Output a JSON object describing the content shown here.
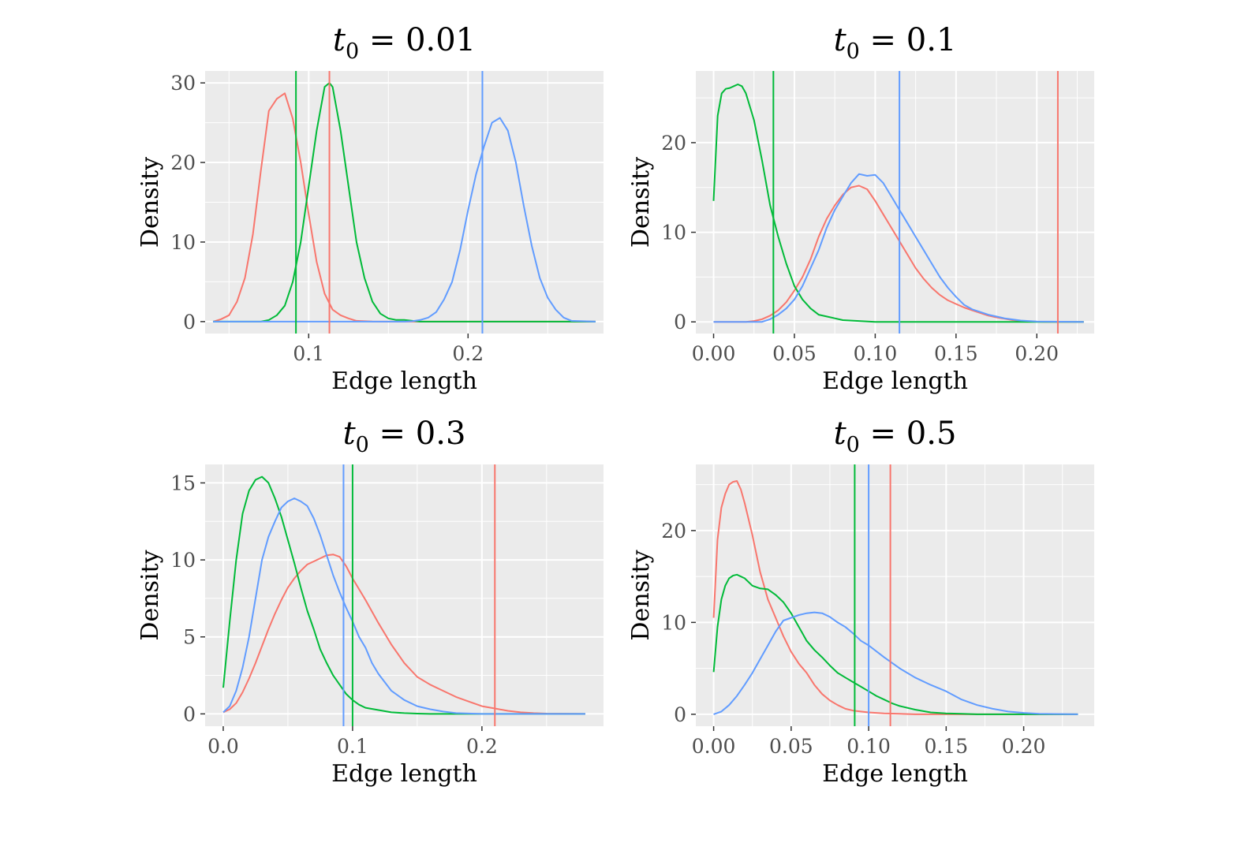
{
  "series_colors": [
    "#f8766d",
    "#00ba38",
    "#619cff"
  ],
  "chart_data": [
    {
      "type": "line",
      "title": {
        "var": "t",
        "sub": "0",
        "rest": " = 0.01"
      },
      "xlabel": "Edge length",
      "ylabel": "Density",
      "xlim": [
        0.035,
        0.285
      ],
      "ylim": [
        -1.5,
        31.5
      ],
      "xticks": [
        {
          "v": 0.1,
          "label": "0.1"
        },
        {
          "v": 0.2,
          "label": "0.2"
        }
      ],
      "xminor": [
        0.05,
        0.15,
        0.25
      ],
      "yticks": [
        {
          "v": 0,
          "label": "0"
        },
        {
          "v": 10,
          "label": "10"
        },
        {
          "v": 20,
          "label": "20"
        },
        {
          "v": 30,
          "label": "30"
        }
      ],
      "yminor": [
        5,
        15,
        25
      ],
      "vlines": [
        0.113,
        0.092,
        0.209
      ],
      "series": [
        {
          "x": [
            0.04,
            0.045,
            0.05,
            0.055,
            0.06,
            0.065,
            0.07,
            0.075,
            0.08,
            0.085,
            0.09,
            0.095,
            0.1,
            0.105,
            0.11,
            0.115,
            0.12,
            0.125,
            0.13,
            0.14,
            0.15,
            0.28
          ],
          "y": [
            0,
            0.3,
            0.8,
            2.5,
            5.5,
            11,
            19,
            26.5,
            28,
            28.7,
            25.5,
            20,
            13.5,
            7.5,
            3.5,
            1.5,
            0.8,
            0.4,
            0.1,
            0.02,
            0,
            0
          ]
        },
        {
          "x": [
            0.04,
            0.07,
            0.075,
            0.08,
            0.085,
            0.09,
            0.095,
            0.1,
            0.105,
            0.11,
            0.113,
            0.115,
            0.12,
            0.125,
            0.13,
            0.135,
            0.14,
            0.145,
            0.15,
            0.155,
            0.16,
            0.165,
            0.17,
            0.28
          ],
          "y": [
            0,
            0,
            0.2,
            0.8,
            2,
            5,
            10,
            17,
            24,
            29.5,
            30,
            29.5,
            24,
            17,
            10,
            5.5,
            2.5,
            1,
            0.4,
            0.2,
            0.2,
            0.1,
            0,
            0
          ]
        },
        {
          "x": [
            0.04,
            0.16,
            0.165,
            0.17,
            0.175,
            0.18,
            0.185,
            0.19,
            0.195,
            0.2,
            0.205,
            0.21,
            0.215,
            0.22,
            0.225,
            0.23,
            0.235,
            0.24,
            0.245,
            0.25,
            0.255,
            0.26,
            0.265,
            0.28
          ],
          "y": [
            0,
            0,
            0.05,
            0.2,
            0.5,
            1.2,
            2.8,
            5,
            9,
            14,
            18.5,
            22,
            25,
            25.6,
            24,
            20,
            14.5,
            9.5,
            5.5,
            3,
            1.5,
            0.5,
            0.1,
            0
          ]
        }
      ]
    },
    {
      "type": "line",
      "title": {
        "var": "t",
        "sub": "0",
        "rest": " = 0.1"
      },
      "xlabel": "Edge length",
      "ylabel": "Density",
      "xlim": [
        -0.011,
        0.2355
      ],
      "ylim": [
        -1.3,
        28
      ],
      "xticks": [
        {
          "v": 0,
          "label": "0.00"
        },
        {
          "v": 0.05,
          "label": "0.05"
        },
        {
          "v": 0.1,
          "label": "0.10"
        },
        {
          "v": 0.15,
          "label": "0.15"
        },
        {
          "v": 0.2,
          "label": "0.20"
        }
      ],
      "xminor": [
        0.025,
        0.075,
        0.125,
        0.175,
        0.225
      ],
      "yticks": [
        {
          "v": 0,
          "label": "0"
        },
        {
          "v": 10,
          "label": "10"
        },
        {
          "v": 20,
          "label": "20"
        }
      ],
      "yminor": [
        5,
        15,
        25
      ],
      "vlines": [
        0.213,
        0.037,
        0.115
      ],
      "series": [
        {
          "x": [
            0,
            0.02,
            0.025,
            0.03,
            0.035,
            0.04,
            0.045,
            0.05,
            0.055,
            0.06,
            0.065,
            0.07,
            0.075,
            0.08,
            0.085,
            0.09,
            0.095,
            0.1,
            0.105,
            0.11,
            0.115,
            0.12,
            0.125,
            0.13,
            0.135,
            0.14,
            0.145,
            0.15,
            0.155,
            0.16,
            0.165,
            0.17,
            0.175,
            0.18,
            0.185,
            0.19,
            0.195,
            0.2,
            0.205,
            0.21,
            0.229
          ],
          "y": [
            0,
            0,
            0.1,
            0.3,
            0.7,
            1.3,
            2.2,
            3.5,
            5,
            7,
            9.5,
            11.5,
            13,
            14.2,
            15,
            15.2,
            14.8,
            13.5,
            12,
            10.5,
            9,
            7.5,
            6,
            4.8,
            3.8,
            3,
            2.4,
            2,
            1.6,
            1.3,
            1,
            0.7,
            0.5,
            0.35,
            0.2,
            0.1,
            0.05,
            0.02,
            0,
            0,
            0
          ]
        },
        {
          "x": [
            0,
            0.0025,
            0.005,
            0.0075,
            0.01,
            0.0125,
            0.015,
            0.0175,
            0.02,
            0.025,
            0.03,
            0.035,
            0.04,
            0.045,
            0.05,
            0.055,
            0.06,
            0.065,
            0.07,
            0.075,
            0.08,
            0.09,
            0.1,
            0.229
          ],
          "y": [
            13.5,
            23,
            25.5,
            26,
            26.1,
            26.3,
            26.5,
            26.3,
            25.5,
            22.5,
            18,
            13,
            9.5,
            6.5,
            4,
            2.5,
            1.5,
            0.8,
            0.6,
            0.4,
            0.2,
            0.1,
            0,
            0
          ]
        },
        {
          "x": [
            0,
            0.03,
            0.035,
            0.04,
            0.045,
            0.05,
            0.055,
            0.06,
            0.065,
            0.07,
            0.075,
            0.08,
            0.085,
            0.09,
            0.095,
            0.1,
            0.105,
            0.11,
            0.115,
            0.12,
            0.125,
            0.13,
            0.135,
            0.14,
            0.145,
            0.15,
            0.155,
            0.16,
            0.17,
            0.18,
            0.19,
            0.2,
            0.229
          ],
          "y": [
            0,
            0,
            0.3,
            0.8,
            1.5,
            2.5,
            4,
            6,
            8,
            10.5,
            12.5,
            14,
            15.5,
            16.5,
            16.3,
            16.4,
            15.5,
            14,
            12.5,
            11,
            9.5,
            8,
            6.5,
            5,
            3.8,
            2.8,
            1.9,
            1.4,
            0.8,
            0.4,
            0.15,
            0.05,
            0
          ]
        }
      ]
    },
    {
      "type": "line",
      "title": {
        "var": "t",
        "sub": "0",
        "rest": " = 0.3"
      },
      "xlabel": "Edge length",
      "ylabel": "Density",
      "xlim": [
        -0.014,
        0.294
      ],
      "ylim": [
        -0.8,
        16.2
      ],
      "xticks": [
        {
          "v": 0,
          "label": "0.0"
        },
        {
          "v": 0.1,
          "label": "0.1"
        },
        {
          "v": 0.2,
          "label": "0.2"
        }
      ],
      "xminor": [
        0.05,
        0.15,
        0.25
      ],
      "yticks": [
        {
          "v": 0,
          "label": "0"
        },
        {
          "v": 5,
          "label": "5"
        },
        {
          "v": 10,
          "label": "10"
        },
        {
          "v": 15,
          "label": "15"
        }
      ],
      "yminor": [
        2.5,
        7.5,
        12.5
      ],
      "vlines": [
        0.21,
        0.1,
        0.093
      ],
      "series": [
        {
          "x": [
            0,
            0.005,
            0.01,
            0.015,
            0.02,
            0.025,
            0.03,
            0.035,
            0.04,
            0.045,
            0.05,
            0.055,
            0.06,
            0.065,
            0.07,
            0.075,
            0.08,
            0.085,
            0.09,
            0.095,
            0.1,
            0.11,
            0.12,
            0.13,
            0.14,
            0.15,
            0.16,
            0.17,
            0.18,
            0.19,
            0.2,
            0.21,
            0.22,
            0.23,
            0.24,
            0.25,
            0.28
          ],
          "y": [
            0.1,
            0.3,
            0.7,
            1.4,
            2.3,
            3.3,
            4.4,
            5.5,
            6.5,
            7.4,
            8.2,
            8.8,
            9.3,
            9.7,
            9.9,
            10.1,
            10.3,
            10.35,
            10.2,
            9.6,
            8.8,
            7.4,
            5.9,
            4.5,
            3.3,
            2.4,
            1.9,
            1.5,
            1.1,
            0.8,
            0.5,
            0.35,
            0.2,
            0.1,
            0.05,
            0.02,
            0
          ]
        },
        {
          "x": [
            0,
            0.005,
            0.01,
            0.015,
            0.02,
            0.025,
            0.03,
            0.035,
            0.04,
            0.045,
            0.05,
            0.055,
            0.06,
            0.065,
            0.07,
            0.075,
            0.08,
            0.085,
            0.09,
            0.095,
            0.1,
            0.105,
            0.11,
            0.12,
            0.13,
            0.14,
            0.15,
            0.16,
            0.17,
            0.28
          ],
          "y": [
            1.7,
            6,
            10,
            13,
            14.5,
            15.2,
            15.4,
            15,
            14,
            12.8,
            11.3,
            9.8,
            8.2,
            6.7,
            5.5,
            4.2,
            3.3,
            2.5,
            1.9,
            1.3,
            0.9,
            0.6,
            0.4,
            0.25,
            0.1,
            0.05,
            0.02,
            0,
            0,
            0
          ]
        },
        {
          "x": [
            0,
            0.005,
            0.01,
            0.015,
            0.02,
            0.025,
            0.03,
            0.035,
            0.04,
            0.045,
            0.05,
            0.055,
            0.06,
            0.065,
            0.07,
            0.075,
            0.08,
            0.085,
            0.09,
            0.095,
            0.1,
            0.105,
            0.11,
            0.115,
            0.12,
            0.13,
            0.14,
            0.15,
            0.16,
            0.17,
            0.18,
            0.2,
            0.28
          ],
          "y": [
            0.1,
            0.5,
            1.5,
            3,
            5,
            7.5,
            10,
            11.5,
            12.5,
            13.4,
            13.8,
            14,
            13.8,
            13.5,
            12.7,
            11.6,
            10.3,
            9,
            7.9,
            6.9,
            6,
            5,
            4.3,
            3.3,
            2.6,
            1.5,
            0.9,
            0.5,
            0.3,
            0.15,
            0.05,
            0,
            0
          ]
        }
      ]
    },
    {
      "type": "line",
      "title": {
        "var": "t",
        "sub": "0",
        "rest": " = 0.5"
      },
      "xlabel": "Edge length",
      "ylabel": "Density",
      "xlim": [
        -0.0115,
        0.2455
      ],
      "ylim": [
        -1.3,
        27.2
      ],
      "xticks": [
        {
          "v": 0,
          "label": "0.00"
        },
        {
          "v": 0.05,
          "label": "0.05"
        },
        {
          "v": 0.1,
          "label": "0.10"
        },
        {
          "v": 0.15,
          "label": "0.15"
        },
        {
          "v": 0.2,
          "label": "0.20"
        }
      ],
      "xminor": [
        0.025,
        0.075,
        0.125,
        0.175,
        0.225
      ],
      "yticks": [
        {
          "v": 0,
          "label": "0"
        },
        {
          "v": 10,
          "label": "10"
        },
        {
          "v": 20,
          "label": "20"
        }
      ],
      "yminor": [
        5,
        15,
        25
      ],
      "vlines": [
        0.114,
        0.091,
        0.1
      ],
      "series": [
        {
          "x": [
            0,
            0.0025,
            0.005,
            0.0075,
            0.01,
            0.0125,
            0.015,
            0.0175,
            0.02,
            0.025,
            0.03,
            0.035,
            0.04,
            0.045,
            0.05,
            0.055,
            0.06,
            0.065,
            0.07,
            0.075,
            0.08,
            0.085,
            0.09,
            0.1,
            0.11,
            0.12,
            0.13,
            0.235
          ],
          "y": [
            10.5,
            19,
            22.5,
            24,
            25,
            25.3,
            25.4,
            24.5,
            23,
            19.5,
            15.5,
            12.5,
            10.5,
            8.5,
            6.8,
            5.5,
            4.5,
            3.2,
            2.2,
            1.5,
            1,
            0.6,
            0.4,
            0.2,
            0.1,
            0.05,
            0,
            0
          ]
        },
        {
          "x": [
            0,
            0.0025,
            0.005,
            0.0075,
            0.01,
            0.0125,
            0.015,
            0.02,
            0.025,
            0.03,
            0.035,
            0.04,
            0.045,
            0.05,
            0.055,
            0.06,
            0.065,
            0.07,
            0.075,
            0.08,
            0.085,
            0.09,
            0.095,
            0.1,
            0.105,
            0.11,
            0.115,
            0.12,
            0.13,
            0.14,
            0.15,
            0.16,
            0.17,
            0.235
          ],
          "y": [
            4.6,
            9.5,
            12.5,
            14,
            14.8,
            15.1,
            15.2,
            14.8,
            14,
            13.7,
            13.6,
            13,
            12.2,
            11,
            9.5,
            8,
            7,
            6.2,
            5.3,
            4.5,
            4,
            3.5,
            3,
            2.5,
            2,
            1.6,
            1.2,
            0.9,
            0.5,
            0.2,
            0.1,
            0.05,
            0,
            0
          ]
        },
        {
          "x": [
            0,
            0.005,
            0.01,
            0.015,
            0.02,
            0.025,
            0.03,
            0.035,
            0.04,
            0.045,
            0.05,
            0.055,
            0.06,
            0.065,
            0.07,
            0.075,
            0.08,
            0.085,
            0.09,
            0.095,
            0.1,
            0.11,
            0.12,
            0.13,
            0.14,
            0.15,
            0.16,
            0.17,
            0.18,
            0.19,
            0.2,
            0.21,
            0.235
          ],
          "y": [
            0,
            0.3,
            1,
            2,
            3.2,
            4.5,
            6,
            7.5,
            9,
            10.2,
            10.5,
            10.8,
            11,
            11.1,
            11,
            10.6,
            10,
            9.5,
            8.8,
            8,
            7.5,
            6.2,
            5,
            4,
            3.2,
            2.5,
            1.6,
            1,
            0.6,
            0.3,
            0.15,
            0.05,
            0
          ]
        }
      ]
    }
  ]
}
